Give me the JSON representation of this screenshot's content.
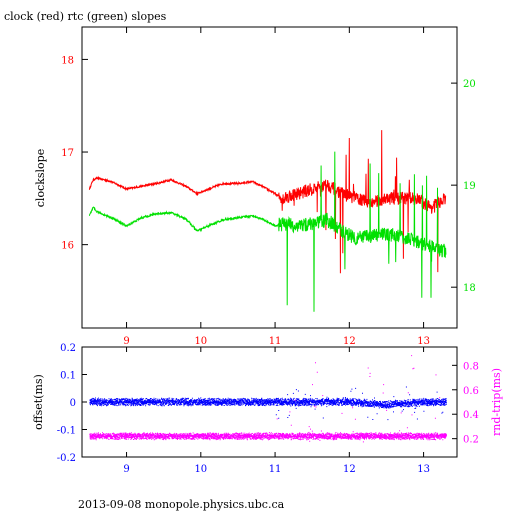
{
  "colors": {
    "clock": "#ff0000",
    "rtc": "#00e000",
    "offset": "#0000ff",
    "rndtrip": "#ff00ff",
    "axes": "#000000"
  },
  "chart_data": [
    {
      "type": "line",
      "title": "clock (red) rtc (green) slopes",
      "ylabel": "clockslope",
      "xlabel": "",
      "xlim": [
        8.4,
        13.45
      ],
      "xticks": [
        "9",
        "10",
        "11",
        "12",
        "13"
      ],
      "x_tick_values": [
        9,
        10,
        11,
        12,
        13
      ],
      "ylim": [
        15.1,
        18.35
      ],
      "yticks_left": [
        "16",
        "17",
        "18"
      ],
      "yticks_left_values": [
        16,
        17,
        18
      ],
      "y2lim": [
        17.6,
        20.55
      ],
      "yticks_right": [
        "18",
        "19",
        "20"
      ],
      "yticks_right_values": [
        18,
        19,
        20
      ],
      "grid": false,
      "series": [
        {
          "name": "clock",
          "axis": "left",
          "x": [
            8.5,
            8.55,
            8.6,
            8.8,
            9.0,
            9.2,
            9.4,
            9.6,
            9.8,
            9.95,
            10.1,
            10.3,
            10.5,
            10.7,
            10.85,
            11.0,
            11.1,
            11.3,
            11.5,
            11.7,
            11.9,
            12.1,
            12.3,
            12.5,
            12.7,
            12.9,
            13.1,
            13.3
          ],
          "y": [
            16.6,
            16.7,
            16.72,
            16.68,
            16.6,
            16.63,
            16.66,
            16.7,
            16.63,
            16.55,
            16.6,
            16.66,
            16.66,
            16.68,
            16.62,
            16.55,
            16.5,
            16.55,
            16.6,
            16.65,
            16.55,
            16.5,
            16.45,
            16.5,
            16.5,
            16.5,
            16.4,
            16.5
          ]
        },
        {
          "name": "rtc",
          "axis": "right",
          "x": [
            8.5,
            8.55,
            8.6,
            8.8,
            9.0,
            9.2,
            9.4,
            9.6,
            9.8,
            9.95,
            10.1,
            10.3,
            10.5,
            10.7,
            10.85,
            11.0,
            11.1,
            11.3,
            11.5,
            11.7,
            11.9,
            12.1,
            12.3,
            12.5,
            12.7,
            12.9,
            13.1,
            13.3
          ],
          "y": [
            18.7,
            18.78,
            18.74,
            18.68,
            18.6,
            18.68,
            18.72,
            18.73,
            18.67,
            18.55,
            18.6,
            18.66,
            18.68,
            18.7,
            18.66,
            18.6,
            18.62,
            18.6,
            18.62,
            18.66,
            18.55,
            18.48,
            18.5,
            18.52,
            18.5,
            18.45,
            18.4,
            18.35
          ]
        }
      ]
    },
    {
      "type": "scatter",
      "xlabel": "",
      "xlim": [
        8.4,
        13.45
      ],
      "xticks": [
        "9",
        "10",
        "11",
        "12",
        "13"
      ],
      "x_tick_values": [
        9,
        10,
        11,
        12,
        13
      ],
      "ylabel": "offset(ms)",
      "ylim": [
        -0.2,
        0.2
      ],
      "yticks_left": [
        "-0.2",
        "-0.1",
        "0",
        "0.1",
        "0.2"
      ],
      "yticks_left_values": [
        -0.2,
        -0.1,
        0,
        0.1,
        0.2
      ],
      "y2label": "rnd-trip(ms)",
      "y2lim": [
        0.05,
        0.95
      ],
      "yticks_right": [
        "0.2",
        "0.4",
        "0.6",
        "0.8"
      ],
      "yticks_right_values": [
        0.2,
        0.4,
        0.6,
        0.8
      ],
      "grid": false,
      "series": [
        {
          "name": "offset",
          "axis": "left",
          "x": [
            8.5,
            9.0,
            9.5,
            10.0,
            10.5,
            11.0,
            11.5,
            12.0,
            12.5,
            13.0,
            13.3
          ],
          "y": [
            0.0,
            0.0,
            0.0,
            0.0,
            0.0,
            0.0,
            0.0,
            0.0,
            -0.01,
            0.0,
            0.0
          ],
          "spread": 0.015
        },
        {
          "name": "rnd-trip",
          "axis": "right",
          "x": [
            8.5,
            9.0,
            9.5,
            10.0,
            10.5,
            11.0,
            11.5,
            12.0,
            12.5,
            13.0,
            13.3
          ],
          "y": [
            0.22,
            0.22,
            0.22,
            0.22,
            0.22,
            0.22,
            0.22,
            0.22,
            0.22,
            0.22,
            0.22
          ],
          "spread": 0.03
        }
      ]
    }
  ],
  "footer": "2013-09-08  monopole.physics.ubc.ca"
}
